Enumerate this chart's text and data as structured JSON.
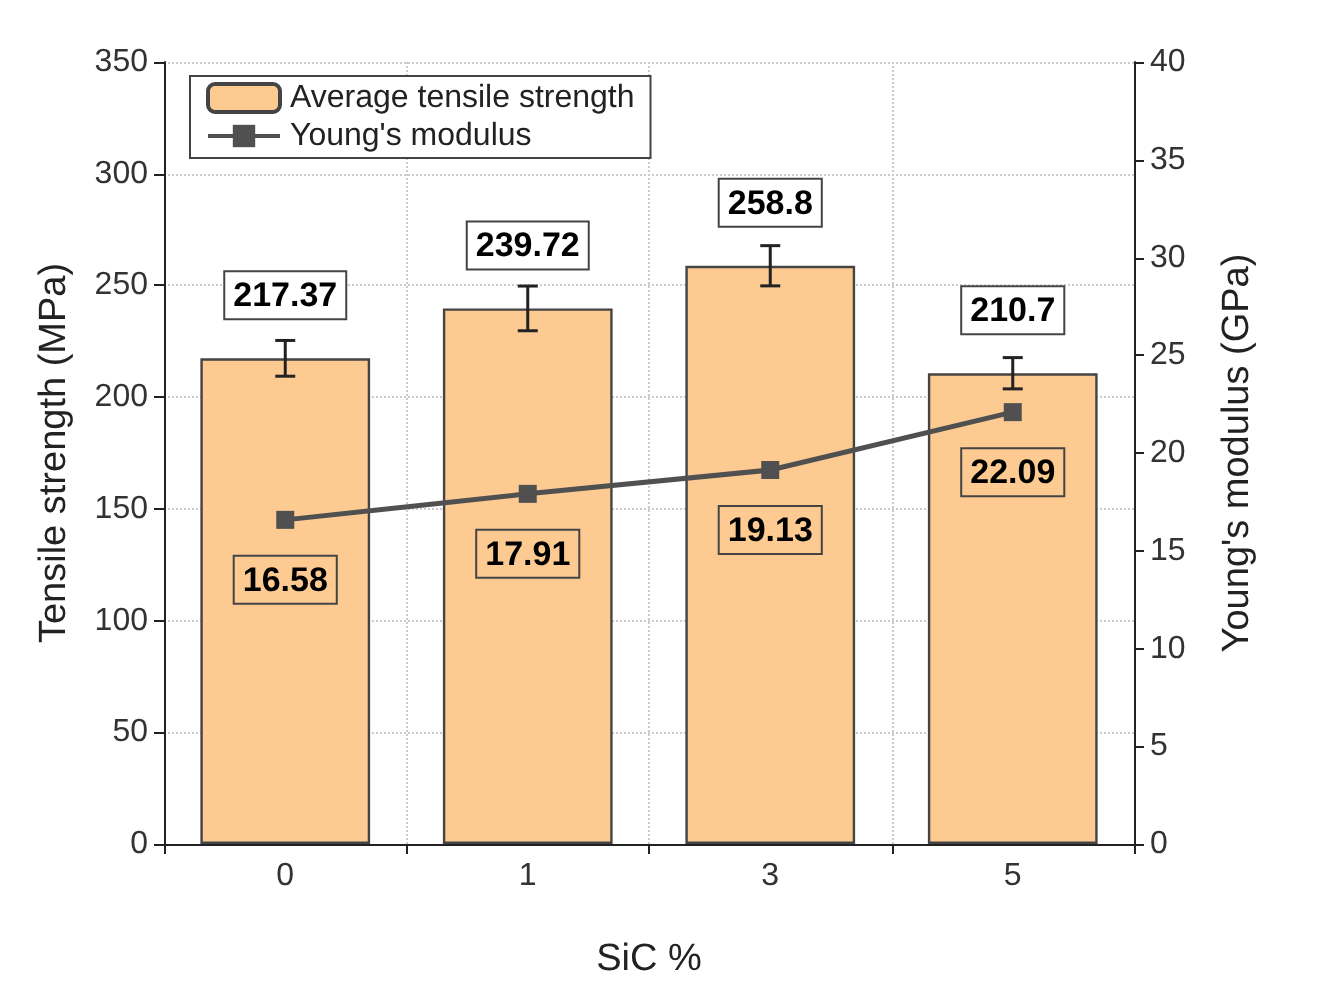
{
  "chart_data": {
    "type": "bar",
    "xlabel": "SiC %",
    "ylabel": "Tensile strength (MPa)",
    "y2label": "Young's modulus (GPa)",
    "categories": [
      "0",
      "1",
      "3",
      "5"
    ],
    "series": [
      {
        "name": "Average tensile strength",
        "color": "#fdcb92",
        "values": [
          217.37,
          239.72,
          258.8,
          210.7
        ],
        "errors": [
          8,
          10,
          9,
          7
        ]
      },
      {
        "name": "Young's modulus",
        "type": "line",
        "axis": "y2",
        "color": "#505050",
        "values": [
          16.58,
          17.91,
          19.13,
          22.09
        ],
        "marker": "square",
        "line_style": "solid"
      }
    ],
    "ylim": [
      0,
      350
    ],
    "yticks": [
      0,
      50,
      100,
      150,
      200,
      250,
      300,
      350
    ],
    "y2lim": [
      0,
      40
    ],
    "y2ticks": [
      0,
      5,
      10,
      15,
      20,
      25,
      30,
      35,
      40
    ],
    "data_labels": true,
    "grid": true,
    "legend": "top left"
  }
}
